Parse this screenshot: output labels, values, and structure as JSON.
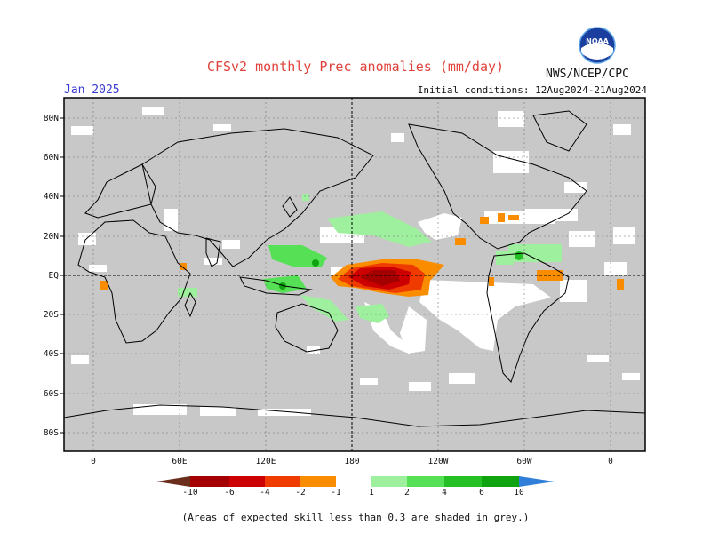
{
  "header": {
    "title": "CFSv2 monthly Prec anomalies (mm/day)",
    "month": "Jan 2025",
    "initial_conditions": "Initial conditions: 12Aug2024-21Aug2024",
    "agency": "NWS/NCEP/CPC",
    "logo_text": "NOAA"
  },
  "map": {
    "lat_labels": [
      "80N",
      "60N",
      "40N",
      "20N",
      "EQ",
      "20S",
      "40S",
      "60S",
      "80S"
    ],
    "lon_labels": [
      "0",
      "60E",
      "120E",
      "180",
      "120W",
      "60W",
      "0"
    ],
    "colors": {
      "ocean": "#c8c8c8",
      "coast": "#000000",
      "grid": "#6f6f6f"
    }
  },
  "legend": {
    "tick_labels": [
      "-10",
      "-6",
      "-4",
      "-2",
      "-1",
      "1",
      "2",
      "4",
      "6",
      "10"
    ],
    "colors": [
      "#6b2e1c",
      "#a40000",
      "#cc0000",
      "#ef3b00",
      "#fa8c00",
      "#ffa500",
      "#ffffff",
      "#9ef09e",
      "#55e055",
      "#25c025",
      "#0fa30f",
      "#0a820a",
      "#2f7fd9"
    ]
  },
  "footnote": "(Areas of expected skill less than 0.3 are shaded in grey.)"
}
